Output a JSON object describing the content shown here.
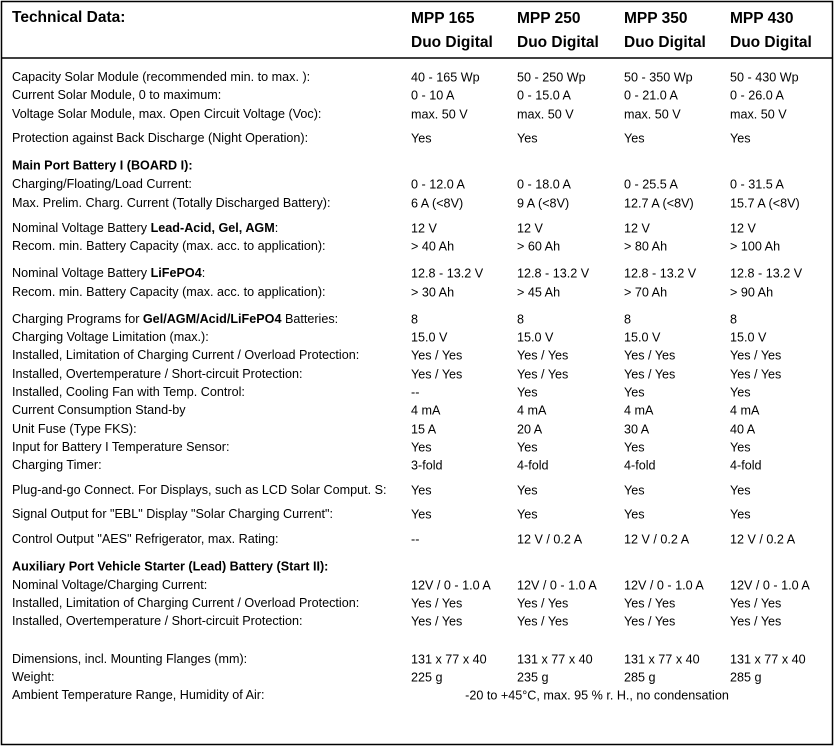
{
  "header": {
    "title": "Technical Data:",
    "models": [
      [
        "MPP 165",
        "Duo Digital"
      ],
      [
        "MPP 250",
        "Duo Digital"
      ],
      [
        "MPP 350",
        "Duo Digital"
      ],
      [
        "MPP 430",
        "Duo Digital"
      ]
    ]
  },
  "rows": [
    {
      "label": [
        "Capacity Solar Module (recommended min. to max. ):"
      ],
      "values": [
        "40 - 165 Wp",
        "50 - 250 Wp",
        "50 - 350 Wp",
        "50 - 430 Wp"
      ]
    },
    {
      "label": [
        "Current Solar Module, 0 to maximum:"
      ],
      "values": [
        "0 - 10 A",
        "0 - 15.0 A",
        "0 - 21.0 A",
        "0 - 26.0 A"
      ]
    },
    {
      "label": [
        "Voltage Solar Module, max. Open Circuit Voltage (Voc):"
      ],
      "values": [
        "max. 50 V",
        "max. 50 V",
        "max. 50 V",
        "max. 50 V"
      ]
    },
    {
      "label": [
        "Protection against Back Discharge (Night Operation):"
      ],
      "values": [
        "Yes",
        "Yes",
        "Yes",
        "Yes"
      ]
    },
    {
      "heading": "Main Port Battery I (BOARD I):"
    },
    {
      "label": [
        "Charging/Floating/Load Current:"
      ],
      "values": [
        "0 - 12.0 A",
        "0 - 18.0 A",
        "0 - 25.5 A",
        "0 - 31.5 A"
      ]
    },
    {
      "label": [
        "Max. Prelim. Charg. Current (Totally Discharged Battery):"
      ],
      "values": [
        "6 A  (<8V)",
        "9 A  (<8V)",
        "12.7 A  (<8V)",
        "15.7 A  (<8V)"
      ]
    },
    {
      "label": [
        "Nominal Voltage Battery ",
        "Lead-Acid, Gel, AGM",
        ":"
      ],
      "values": [
        "12 V",
        "12 V",
        "12 V",
        "12 V"
      ]
    },
    {
      "label": [
        "Recom. min. Battery Capacity (max. acc. to application):"
      ],
      "values": [
        "> 40 Ah",
        "> 60 Ah",
        "> 80 Ah",
        "> 100 Ah"
      ]
    },
    {
      "label": [
        "Nominal Voltage Battery ",
        "LiFePO4",
        ":"
      ],
      "values": [
        "12.8 - 13.2 V",
        "12.8 - 13.2 V",
        "12.8 - 13.2 V",
        "12.8 - 13.2 V"
      ]
    },
    {
      "label": [
        "Recom. min. Battery Capacity (max. acc. to application):"
      ],
      "values": [
        "> 30 Ah",
        "> 45 Ah",
        "> 70 Ah",
        "> 90 Ah"
      ]
    },
    {
      "label": [
        "Charging Programs for ",
        "Gel/AGM/Acid/LiFePO4",
        " Batteries:"
      ],
      "values": [
        "8",
        "8",
        "8",
        "8"
      ]
    },
    {
      "label": [
        "Charging Voltage Limitation (max.):"
      ],
      "values": [
        "15.0 V",
        "15.0 V",
        "15.0 V",
        "15.0 V"
      ]
    },
    {
      "label": [
        "Installed, Limitation of Charging Current / Overload Protection:"
      ],
      "values": [
        "Yes / Yes",
        "Yes / Yes",
        "Yes / Yes",
        "Yes / Yes"
      ]
    },
    {
      "label": [
        "Installed, Overtemperature / Short-circuit Protection:"
      ],
      "values": [
        "Yes / Yes",
        "Yes / Yes",
        "Yes / Yes",
        "Yes / Yes"
      ]
    },
    {
      "label": [
        "Installed, Cooling Fan with Temp. Control:"
      ],
      "values": [
        "--",
        "Yes",
        "Yes",
        "Yes"
      ]
    },
    {
      "label": [
        "Current Consumption Stand-by"
      ],
      "values": [
        "4 mA",
        "4 mA",
        "4 mA",
        "4 mA"
      ]
    },
    {
      "label": [
        "Unit Fuse (Type FKS):"
      ],
      "values": [
        "15 A",
        "20 A",
        "30 A",
        "40 A"
      ]
    },
    {
      "label": [
        "Input for Battery I Temperature Sensor:"
      ],
      "values": [
        "Yes",
        "Yes",
        "Yes",
        "Yes"
      ]
    },
    {
      "label": [
        "Charging Timer:"
      ],
      "values": [
        "3-fold",
        "4-fold",
        "4-fold",
        "4-fold"
      ]
    },
    {
      "label": [
        "Plug-and-go Connect. For Displays, such as LCD Solar Comput. S:"
      ],
      "values": [
        "Yes",
        "Yes",
        "Yes",
        "Yes"
      ]
    },
    {
      "label": [
        "Signal Output for \"EBL\" Display \"Solar Charging Current\":"
      ],
      "values": [
        "Yes",
        "Yes",
        "Yes",
        "Yes"
      ]
    },
    {
      "label": [
        "Control Output \"AES\" Refrigerator, max. Rating:"
      ],
      "values": [
        "--",
        "12 V / 0.2 A",
        "12 V / 0.2 A",
        "12 V / 0.2 A"
      ]
    },
    {
      "heading": "Auxiliary Port Vehicle Starter (Lead) Battery (Start II):"
    },
    {
      "label": [
        "Nominal Voltage/Charging Current:"
      ],
      "values": [
        "12V / 0 - 1.0 A",
        "12V / 0 - 1.0 A",
        "12V / 0 - 1.0 A",
        "12V / 0 - 1.0 A"
      ]
    },
    {
      "label": [
        "Installed, Limitation of Charging Current / Overload Protection:"
      ],
      "values": [
        "Yes / Yes",
        "Yes / Yes",
        "Yes / Yes",
        "Yes / Yes"
      ]
    },
    {
      "label": [
        "Installed, Overtemperature / Short-circuit Protection:"
      ],
      "values": [
        "Yes / Yes",
        "Yes / Yes",
        "Yes / Yes",
        "Yes / Yes"
      ]
    },
    {
      "label": [
        "Dimensions, incl. Mounting Flanges (mm):"
      ],
      "values": [
        "131 x 77 x 40",
        "131 x 77 x 40",
        "131 x 77 x 40",
        "131 x 77 x 40"
      ]
    },
    {
      "label": [
        "Weight:"
      ],
      "values": [
        "225 g",
        "235 g",
        "285 g",
        "285 g"
      ]
    },
    {
      "label": [
        "Ambient Temperature Range, Humidity of Air:"
      ],
      "span": "-20 to +45°C, max. 95 % r. H., no condensation"
    }
  ]
}
